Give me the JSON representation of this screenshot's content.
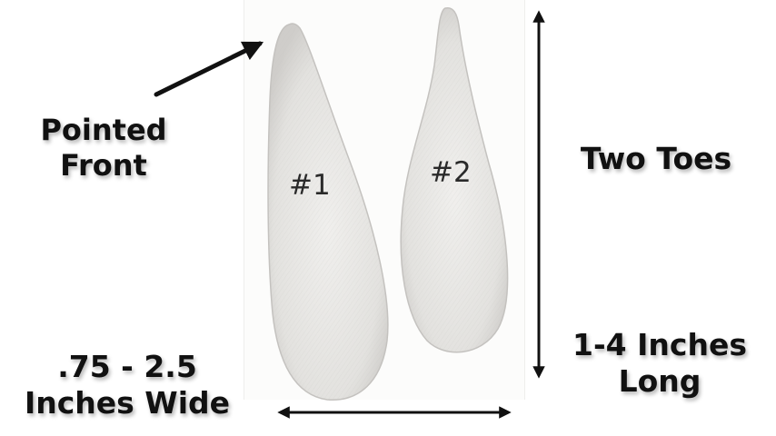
{
  "labels": {
    "pointed_front": [
      "Pointed",
      "Front"
    ],
    "two_toes": "Two Toes",
    "length": [
      "1-4 Inches",
      "Long"
    ],
    "width": [
      ".75 - 2.5",
      "Inches Wide"
    ]
  },
  "toes": {
    "first": "#1",
    "second": "#2"
  },
  "colors": {
    "paper": "#fcfcfb",
    "toe_fill": "#e6e5e3",
    "arrow": "#111111"
  }
}
